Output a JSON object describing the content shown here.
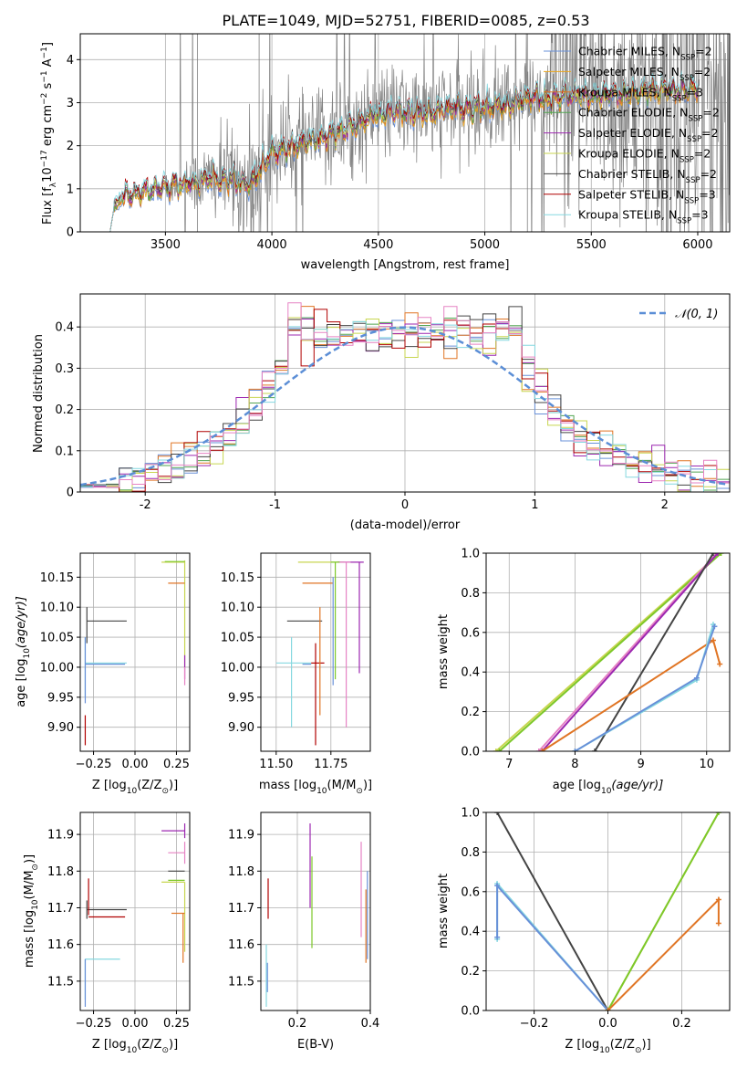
{
  "colors": {
    "Chabrier MILES": "#6890d8",
    "Salpeter MILES": "#e9a51c",
    "Kroupa MILES": "#e07524",
    "Chabrier ELODIE": "#52a552",
    "Salpeter ELODIE": "#9c27b0",
    "Kroupa ELODIE": "#c8d650",
    "Chabrier STELIB": "#444444",
    "Salpeter STELIB": "#b00000",
    "Kroupa STELIB": "#86d8e0",
    "extra1": "#e683c4",
    "extra2": "#7dc82a",
    "observed": "#808080",
    "gaussian": "#5b8ed6"
  },
  "chart_data": [
    {
      "id": "spectrum",
      "type": "line",
      "title": "PLATE=1049, MJD=52751, FIBERID=0085, z=0.53",
      "xlabel": "wavelength [Angstrom, rest frame]",
      "ylabel": "Flux [f_λ 10^-17 erg cm^-2 s^-1 A^-1]",
      "xlim": [
        3100,
        6150
      ],
      "ylim": [
        0,
        4.6
      ],
      "xticks": [
        3500,
        4000,
        4500,
        5000,
        5500,
        6000
      ],
      "yticks": [
        0,
        1,
        2,
        3,
        4
      ],
      "legend": "top-right",
      "legend_entries": [
        {
          "name": "Chabrier MILES, N_SSP=2",
          "base": "Chabrier MILES, N",
          "sub": "SSP",
          "tail": "=2",
          "key": "Chabrier MILES"
        },
        {
          "name": "Salpeter MILES, N_SSP=2",
          "base": "Salpeter MILES, N",
          "sub": "SSP",
          "tail": "=2",
          "key": "Salpeter MILES"
        },
        {
          "name": "Kroupa MILES, N_SSP=3",
          "base": "Kroupa MILES, N",
          "sub": "SSP",
          "tail": "=3",
          "key": "Kroupa MILES"
        },
        {
          "name": "Chabrier ELODIE, N_SSP=2",
          "base": "Chabrier ELODIE, N",
          "sub": "SSP",
          "tail": "=2",
          "key": "Chabrier ELODIE"
        },
        {
          "name": "Salpeter ELODIE, N_SSP=2",
          "base": "Salpeter ELODIE, N",
          "sub": "SSP",
          "tail": "=2",
          "key": "Salpeter ELODIE"
        },
        {
          "name": "Kroupa ELODIE, N_SSP=2",
          "base": "Kroupa ELODIE, N",
          "sub": "SSP",
          "tail": "=2",
          "key": "Kroupa ELODIE"
        },
        {
          "name": "Chabrier STELIB, N_SSP=2",
          "base": "Chabrier STELIB, N",
          "sub": "SSP",
          "tail": "=2",
          "key": "Chabrier STELIB"
        },
        {
          "name": "Salpeter STELIB, N_SSP=3",
          "base": "Salpeter STELIB, N",
          "sub": "SSP",
          "tail": "=3",
          "key": "Salpeter STELIB"
        },
        {
          "name": "Kroupa STELIB, N_SSP=3",
          "base": "Kroupa STELIB, N",
          "sub": "SSP",
          "tail": "=3",
          "key": "Kroupa STELIB"
        }
      ],
      "model_wavelength_range": [
        3240,
        6000
      ],
      "model_continuum": {
        "x": [
          3240,
          3260,
          3300,
          3400,
          3500,
          3600,
          3700,
          3800,
          3850,
          3900,
          3950,
          4000,
          4100,
          4200,
          4300,
          4400,
          4500,
          4600,
          4700,
          4800,
          4900,
          5000,
          5100,
          5200,
          5300,
          5400,
          5500,
          5600,
          5700,
          5800,
          5900,
          6000
        ],
        "y": [
          0.0,
          0.6,
          0.8,
          0.95,
          1.05,
          1.15,
          1.2,
          1.25,
          1.15,
          1.1,
          1.5,
          1.85,
          2.0,
          2.15,
          2.3,
          2.5,
          2.75,
          2.8,
          2.75,
          2.85,
          2.85,
          2.9,
          2.95,
          3.1,
          3.1,
          3.2,
          3.15,
          3.2,
          3.25,
          3.3,
          3.3,
          3.35
        ]
      },
      "observed_range": [
        3500,
        6150
      ]
    },
    {
      "id": "residuals",
      "type": "bar",
      "xlabel": "(data-model)/error",
      "ylabel": "Normed distribution",
      "xlim": [
        -2.5,
        2.5
      ],
      "ylim": [
        0,
        0.48
      ],
      "xticks": [
        -2,
        -1,
        0,
        1,
        2
      ],
      "yticks": [
        0.0,
        0.1,
        0.2,
        0.3,
        0.4
      ],
      "legend": "top-right",
      "legend_label": "𝒩(0, 1)",
      "bin_width": 0.1
    },
    {
      "id": "age_vs_Z",
      "type": "scatter",
      "xlabel": "Z [log10(Z/Z⊙)]",
      "ylabel": "age [log10(age/yr)]",
      "xlim": [
        -0.33,
        0.33
      ],
      "ylim": [
        9.86,
        10.19
      ],
      "xticks": [
        -0.25,
        0.0,
        0.25
      ],
      "xticklabels": [
        "−0.25",
        "0.00",
        "0.25"
      ],
      "yticks": [
        9.9,
        9.95,
        10.0,
        10.05,
        10.1,
        10.15
      ],
      "yticklabels": [
        "9.90",
        "9.95",
        "10.00",
        "10.05",
        "10.10",
        "10.15"
      ]
    },
    {
      "id": "age_vs_mass",
      "type": "scatter",
      "xlabel": "mass [log10(M/M⊙)]",
      "xlim": [
        11.43,
        11.93
      ],
      "ylim": [
        9.86,
        10.19
      ],
      "xticks": [
        11.5,
        11.75
      ],
      "xticklabels": [
        "11.50",
        "11.75"
      ],
      "yticks": [
        9.9,
        9.95,
        10.0,
        10.05,
        10.1,
        10.15
      ],
      "yticklabels": [
        "9.90",
        "9.95",
        "10.00",
        "10.05",
        "10.10",
        "10.15"
      ]
    },
    {
      "id": "massweight_vs_age",
      "type": "line",
      "xlabel": "age [log10(age/yr)]",
      "ylabel": "mass weight",
      "xlim": [
        6.65,
        10.35
      ],
      "ylim": [
        0,
        1.0
      ],
      "xticks": [
        7,
        8,
        9,
        10
      ],
      "yticks": [
        0.0,
        0.2,
        0.4,
        0.6,
        0.8,
        1.0
      ],
      "yticklabels": [
        "0.0",
        "0.2",
        "0.4",
        "0.6",
        "0.8",
        "1.0"
      ],
      "series": [
        {
          "key": "Kroupa ELODIE",
          "x": [
            6.8,
            10.2
          ],
          "y": [
            0.0,
            1.0
          ]
        },
        {
          "key": "extra2",
          "x": [
            6.85,
            10.22
          ],
          "y": [
            0.0,
            1.0
          ]
        },
        {
          "key": "extra1",
          "x": [
            7.45,
            10.15
          ],
          "y": [
            0.0,
            1.0
          ]
        },
        {
          "key": "Salpeter ELODIE",
          "x": [
            7.5,
            10.17
          ],
          "y": [
            0.0,
            1.0
          ]
        },
        {
          "key": "Chabrier STELIB",
          "x": [
            8.3,
            10.1
          ],
          "y": [
            0.0,
            1.0
          ]
        },
        {
          "key": "Kroupa MILES",
          "x": [
            7.5,
            10.1,
            10.2
          ],
          "y": [
            0.0,
            0.56,
            0.44
          ]
        },
        {
          "key": "Kroupa STELIB",
          "x": [
            8.0,
            9.85,
            10.1
          ],
          "y": [
            0.0,
            0.36,
            0.64
          ]
        },
        {
          "key": "Chabrier MILES",
          "x": [
            8.0,
            9.85,
            10.12
          ],
          "y": [
            0.0,
            0.37,
            0.63
          ]
        }
      ]
    },
    {
      "id": "mass_vs_Z",
      "type": "scatter",
      "xlabel": "Z [log10(Z/Z⊙)]",
      "ylabel": "mass [log10(M/M⊙)]",
      "xlim": [
        -0.33,
        0.33
      ],
      "ylim": [
        11.42,
        11.96
      ],
      "xticks": [
        -0.25,
        0.0,
        0.25
      ],
      "xticklabels": [
        "−0.25",
        "0.00",
        "0.25"
      ],
      "yticks": [
        11.5,
        11.6,
        11.7,
        11.8,
        11.9
      ],
      "yticklabels": [
        "11.5",
        "11.6",
        "11.7",
        "11.8",
        "11.9"
      ]
    },
    {
      "id": "mass_vs_EBV",
      "type": "scatter",
      "xlabel": "E(B-V)",
      "xlim": [
        0.1,
        0.4
      ],
      "ylim": [
        11.42,
        11.96
      ],
      "xticks": [
        0.2,
        0.4
      ],
      "xticklabels": [
        "0.2",
        "0.4"
      ],
      "yticks": [
        11.5,
        11.6,
        11.7,
        11.8,
        11.9
      ],
      "yticklabels": [
        "11.5",
        "11.6",
        "11.7",
        "11.8",
        "11.9"
      ]
    },
    {
      "id": "massweight_vs_Z",
      "type": "line",
      "xlabel": "Z [log10(Z/Z⊙)]",
      "ylabel": "mass weight",
      "xlim": [
        -0.33,
        0.33
      ],
      "ylim": [
        0,
        1.0
      ],
      "xticks": [
        -0.2,
        0.0,
        0.2
      ],
      "xticklabels": [
        "−0.2",
        "0.0",
        "0.2"
      ],
      "yticks": [
        0.0,
        0.2,
        0.4,
        0.6,
        0.8,
        1.0
      ],
      "yticklabels": [
        "0.0",
        "0.2",
        "0.4",
        "0.6",
        "0.8",
        "1.0"
      ],
      "series": [
        {
          "key": "Chabrier STELIB",
          "x": [
            -0.3,
            0.0
          ],
          "y": [
            1.0,
            0.0
          ]
        },
        {
          "key": "Kroupa STELIB",
          "x": [
            -0.3,
            -0.3,
            0.0
          ],
          "y": [
            0.36,
            0.64,
            0.0
          ]
        },
        {
          "key": "Chabrier MILES",
          "x": [
            -0.3,
            -0.3,
            0.0
          ],
          "y": [
            0.37,
            0.63,
            0.0
          ]
        },
        {
          "key": "Kroupa ELODIE",
          "x": [
            0.0,
            0.3
          ],
          "y": [
            0.0,
            1.0
          ]
        },
        {
          "key": "extra2",
          "x": [
            0.0,
            0.3
          ],
          "y": [
            0.0,
            1.0
          ]
        },
        {
          "key": "Kroupa MILES",
          "x": [
            0.0,
            0.3,
            0.3
          ],
          "y": [
            0.0,
            0.56,
            0.44
          ]
        }
      ]
    }
  ]
}
